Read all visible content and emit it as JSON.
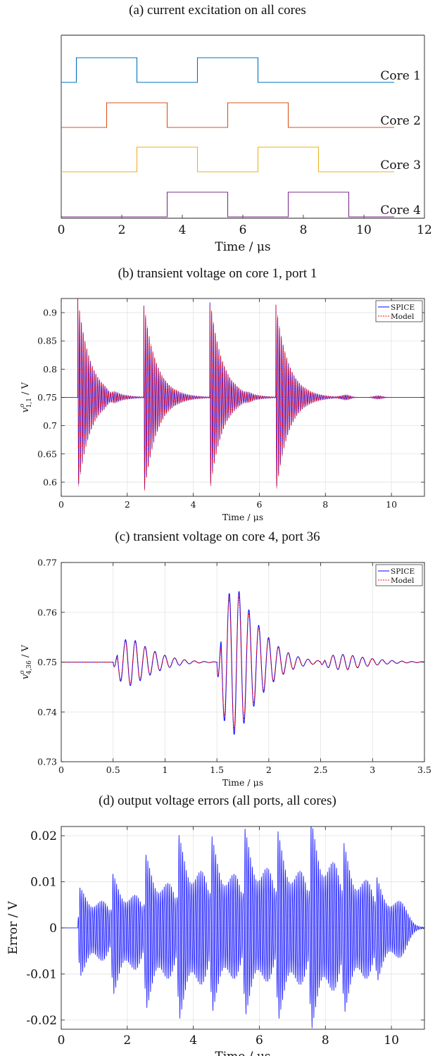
{
  "chart_data": [
    {
      "id": "a",
      "type": "line",
      "title": "(a) current excitation on all cores",
      "xlabel": "Time / μs",
      "ylabel": "",
      "xlim": [
        0,
        12
      ],
      "xticks": [
        0,
        2,
        4,
        6,
        8,
        10,
        12
      ],
      "grid": false,
      "legend": "none",
      "series": [
        {
          "name": "Core 1",
          "color": "#0072BD",
          "pulses": [
            [
              0.5,
              2.5
            ],
            [
              4.5,
              6.5
            ]
          ],
          "x_end": 11
        },
        {
          "name": "Core 2",
          "color": "#D95319",
          "pulses": [
            [
              1.5,
              3.5
            ],
            [
              5.5,
              7.5
            ]
          ],
          "x_end": 11
        },
        {
          "name": "Core 3",
          "color": "#EDB120",
          "pulses": [
            [
              2.5,
              4.5
            ],
            [
              6.5,
              8.5
            ]
          ],
          "x_end": 11
        },
        {
          "name": "Core 4",
          "color": "#7E2F8E",
          "pulses": [
            [
              3.5,
              5.5
            ],
            [
              7.5,
              9.5
            ]
          ],
          "x_end": 11
        }
      ]
    },
    {
      "id": "b",
      "type": "line",
      "title": "(b) transient voltage on core 1, port 1",
      "xlabel": "Time / μs",
      "ylabel": "v^o_{1,1} / V",
      "ylabel_main": "v",
      "ylabel_sup": "o",
      "ylabel_sub": "1,1",
      "ylabel_unit": " / V",
      "xlim": [
        0,
        11
      ],
      "ylim": [
        0.575,
        0.925
      ],
      "xticks": [
        0,
        2,
        4,
        6,
        8,
        10
      ],
      "yticks": [
        0.6,
        0.65,
        0.7,
        0.75,
        0.8,
        0.85,
        0.9
      ],
      "ytick_labels": [
        "0.6",
        "0.65",
        "0.7",
        "0.75",
        "0.8",
        "0.85",
        "0.9"
      ],
      "grid": true,
      "legend": "top-right",
      "baseline": 0.75,
      "series": [
        {
          "name": "SPICE",
          "color": "#0000FF",
          "style": "solid"
        },
        {
          "name": "Model",
          "color": "#FF0000",
          "style": "dashed"
        }
      ],
      "events": [
        {
          "t": 0.5,
          "max": 0.925,
          "min": 0.585
        },
        {
          "t": 2.5,
          "max": 0.915,
          "min": 0.575
        },
        {
          "t": 4.5,
          "max": 0.925,
          "min": 0.585
        },
        {
          "t": 6.5,
          "max": 0.915,
          "min": 0.58
        }
      ],
      "small_ripples": [
        {
          "t": 1.5,
          "amp": 0.004
        },
        {
          "t": 5.6,
          "amp": 0.002
        },
        {
          "t": 8.6,
          "amp": 0.005
        },
        {
          "t": 9.6,
          "amp": 0.003
        }
      ]
    },
    {
      "id": "c",
      "type": "line",
      "title": "(c) transient voltage on core 4, port 36",
      "xlabel": "Time / μs",
      "ylabel": "v^o_{4,36} / V",
      "ylabel_main": "v",
      "ylabel_sup": "o",
      "ylabel_sub": "4,36",
      "ylabel_unit": " / V",
      "xlim": [
        0,
        3.5
      ],
      "ylim": [
        0.73,
        0.77
      ],
      "xticks": [
        0,
        0.5,
        1,
        1.5,
        2,
        2.5,
        3,
        3.5
      ],
      "xtick_labels": [
        "0",
        "0.5",
        "1",
        "1.5",
        "2",
        "2.5",
        "3",
        "3.5"
      ],
      "yticks": [
        0.73,
        0.74,
        0.75,
        0.76,
        0.77
      ],
      "ytick_labels": [
        "0.73",
        "0.74",
        "0.75",
        "0.76",
        "0.77"
      ],
      "grid": true,
      "legend": "top-right",
      "baseline": 0.75,
      "series": [
        {
          "name": "SPICE",
          "color": "#0000FF",
          "style": "solid"
        },
        {
          "name": "Model",
          "color": "#FF0000",
          "style": "dashed"
        }
      ],
      "events": [
        {
          "t": 0.5,
          "amp": 0.0048,
          "peak_t": 0.68,
          "period": 0.045
        },
        {
          "t": 1.5,
          "amp": 0.0148,
          "peak_t": 1.7,
          "period": 0.045
        },
        {
          "t": 2.5,
          "amp": 0.0016,
          "peak_t": 2.75,
          "period": 0.045
        }
      ]
    },
    {
      "id": "d",
      "type": "line",
      "title": "(d) output voltage errors (all ports, all cores)",
      "xlabel": "Time / μs",
      "ylabel": "Error / V",
      "xlim": [
        0,
        11
      ],
      "ylim": [
        -0.022,
        0.022
      ],
      "xticks": [
        0,
        2,
        4,
        6,
        8,
        10
      ],
      "yticks": [
        -0.02,
        -0.01,
        0,
        0.01,
        0.02
      ],
      "ytick_labels": [
        "-0.02",
        "-0.01",
        "0",
        "0.01",
        "0.02"
      ],
      "grid": true,
      "legend": "none",
      "series": [
        {
          "name": "",
          "color": "#0000FF",
          "style": "solid"
        }
      ],
      "bursts": [
        {
          "t": 0.5,
          "max": 0.009,
          "min": -0.011
        },
        {
          "t": 1.5,
          "max": 0.011,
          "min": -0.014
        },
        {
          "t": 2.5,
          "max": 0.015,
          "min": -0.017
        },
        {
          "t": 3.5,
          "max": 0.019,
          "min": -0.019
        },
        {
          "t": 4.5,
          "max": 0.018,
          "min": -0.017
        },
        {
          "t": 5.5,
          "max": 0.02,
          "min": -0.018
        },
        {
          "t": 6.5,
          "max": 0.019,
          "min": -0.019
        },
        {
          "t": 7.5,
          "max": 0.022,
          "min": -0.021
        },
        {
          "t": 8.5,
          "max": 0.016,
          "min": -0.017
        },
        {
          "t": 9.5,
          "max": 0.009,
          "min": -0.01
        }
      ]
    }
  ]
}
